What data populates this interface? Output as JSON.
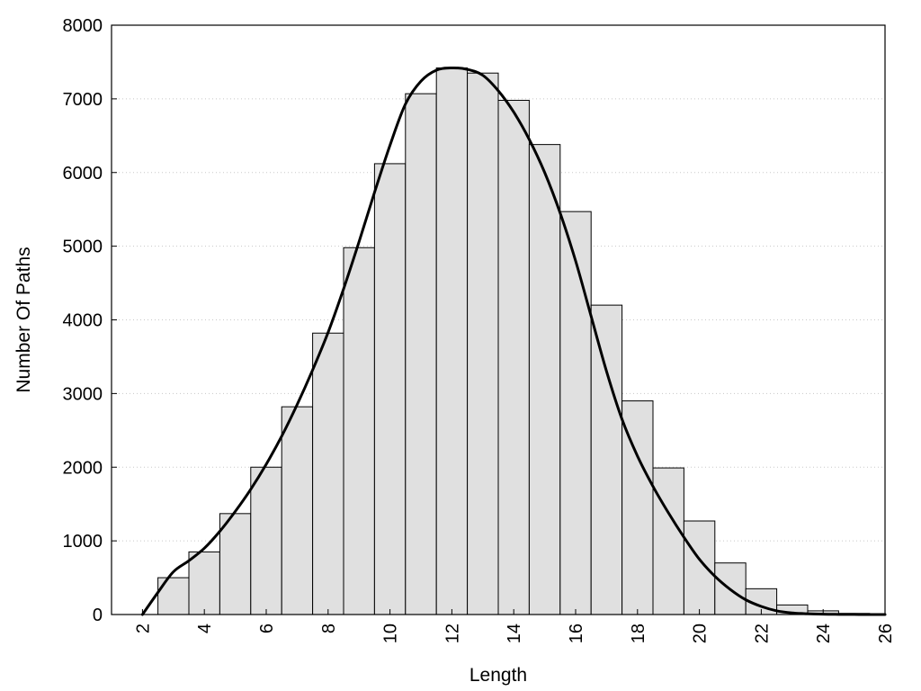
{
  "chart_data": {
    "type": "bar",
    "xlabel": "Length",
    "ylabel": "Number Of Paths",
    "xlim": [
      1,
      26
    ],
    "ylim": [
      0,
      8000
    ],
    "x_ticks": [
      2,
      4,
      6,
      8,
      10,
      12,
      14,
      16,
      18,
      20,
      22,
      24,
      26
    ],
    "y_ticks": [
      0,
      1000,
      2000,
      3000,
      4000,
      5000,
      6000,
      7000,
      8000
    ],
    "grid": "horizontal dotted",
    "bar_fill": "#e0e0e0",
    "bars": [
      {
        "x": 3,
        "value": 500
      },
      {
        "x": 4,
        "value": 850
      },
      {
        "x": 5,
        "value": 1370
      },
      {
        "x": 6,
        "value": 2000
      },
      {
        "x": 7,
        "value": 2820
      },
      {
        "x": 8,
        "value": 3820
      },
      {
        "x": 9,
        "value": 4980
      },
      {
        "x": 10,
        "value": 6120
      },
      {
        "x": 11,
        "value": 7070
      },
      {
        "x": 12,
        "value": 7420
      },
      {
        "x": 13,
        "value": 7350
      },
      {
        "x": 14,
        "value": 6980
      },
      {
        "x": 15,
        "value": 6380
      },
      {
        "x": 16,
        "value": 5470
      },
      {
        "x": 17,
        "value": 4200
      },
      {
        "x": 18,
        "value": 2900
      },
      {
        "x": 19,
        "value": 1990
      },
      {
        "x": 20,
        "value": 1270
      },
      {
        "x": 21,
        "value": 700
      },
      {
        "x": 22,
        "value": 350
      },
      {
        "x": 23,
        "value": 130
      },
      {
        "x": 24,
        "value": 50
      },
      {
        "x": 25,
        "value": 15
      }
    ],
    "curve": {
      "x": [
        2,
        2.5,
        3,
        3.5,
        4,
        4.5,
        5,
        5.5,
        6,
        6.5,
        7,
        7.5,
        8,
        8.5,
        9,
        9.5,
        10,
        10.5,
        11,
        11.5,
        12,
        12.5,
        13,
        13.5,
        14,
        14.5,
        15,
        15.5,
        16,
        16.5,
        17,
        17.5,
        18,
        18.5,
        19,
        19.5,
        20,
        20.5,
        21,
        21.5,
        22,
        22.5,
        23,
        23.5,
        24,
        24.5,
        25,
        25.5,
        26
      ],
      "y": [
        0,
        300,
        580,
        730,
        900,
        1130,
        1400,
        1700,
        2040,
        2420,
        2850,
        3320,
        3830,
        4420,
        5060,
        5730,
        6370,
        6930,
        7240,
        7390,
        7420,
        7400,
        7320,
        7110,
        6820,
        6450,
        6000,
        5450,
        4800,
        4050,
        3300,
        2650,
        2150,
        1740,
        1380,
        1050,
        750,
        520,
        340,
        200,
        110,
        50,
        22,
        10,
        4,
        2,
        1,
        0,
        0
      ]
    }
  }
}
